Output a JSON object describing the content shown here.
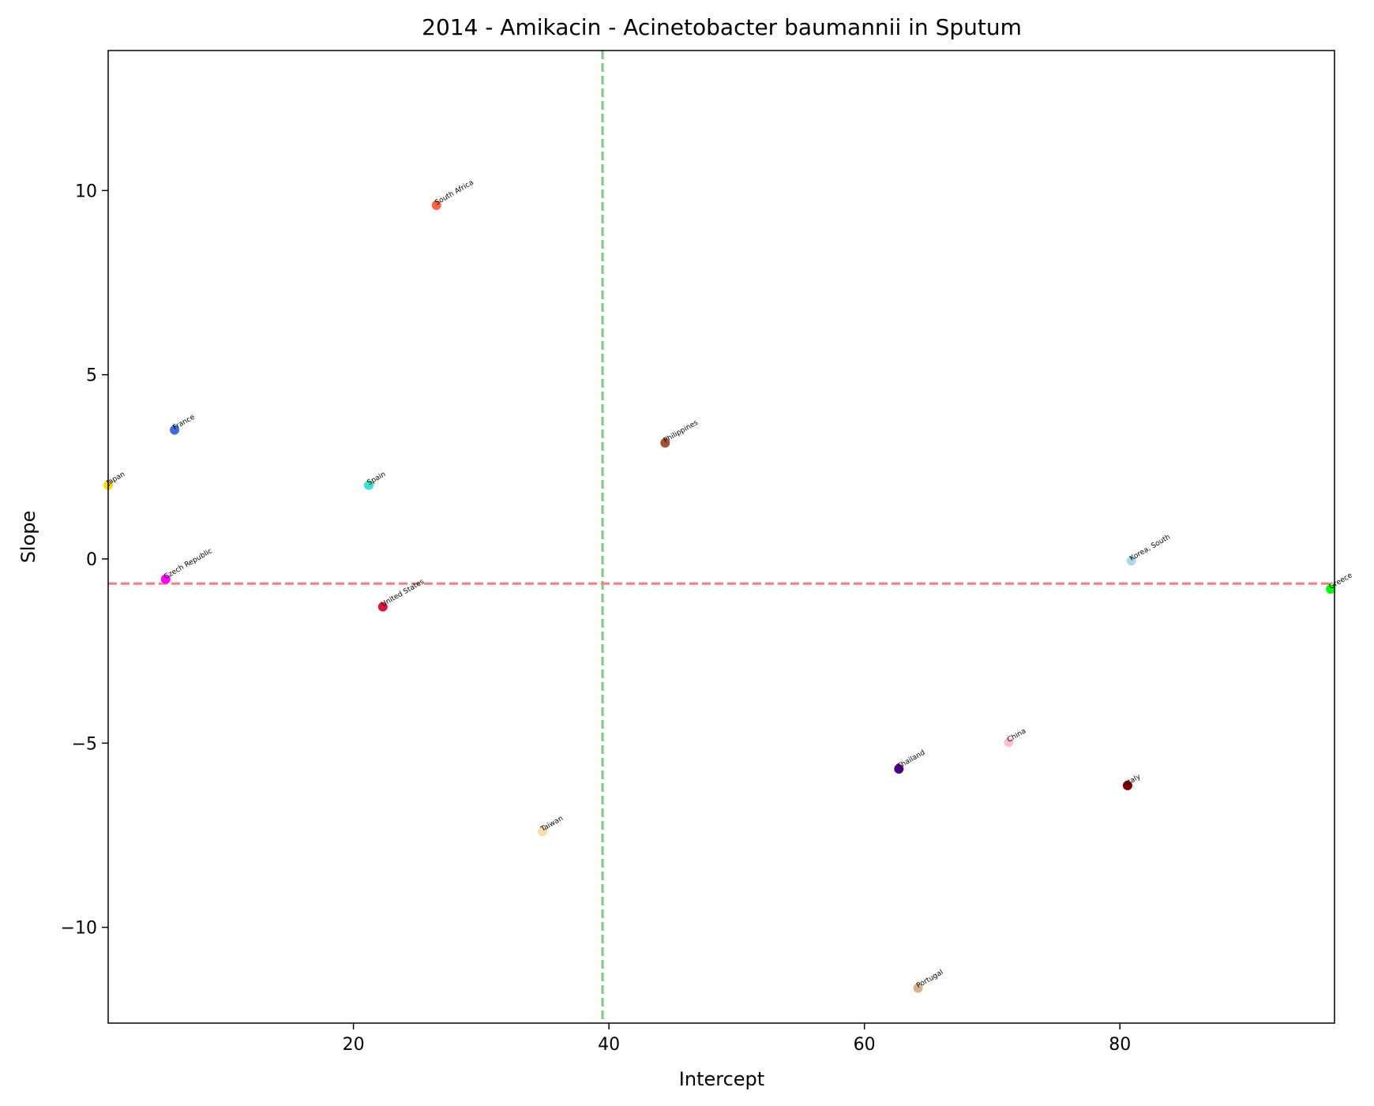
{
  "chart_data": {
    "type": "scatter",
    "title": "2014 - Amikacin - Acinetobacter baumannii in Sputum",
    "xlabel": "Intercept",
    "ylabel": "Slope",
    "xlim": [
      0.8,
      96.8
    ],
    "ylim": [
      -12.6,
      13.8
    ],
    "xticks": [
      20,
      40,
      60,
      80
    ],
    "yticks": [
      -10,
      -5,
      0,
      5,
      10
    ],
    "grid": false,
    "reference_lines": {
      "vertical_x": 39.5,
      "vertical_color": "#7fc87f",
      "horizontal_y": -0.67,
      "horizontal_color": "#f08080"
    },
    "points": [
      {
        "label": "South Africa",
        "x": 26.5,
        "y": 9.6,
        "color": "#ff6347"
      },
      {
        "label": "France",
        "x": 6.0,
        "y": 3.5,
        "color": "#4169e1"
      },
      {
        "label": "Japan",
        "x": 0.8,
        "y": 2.0,
        "color": "#ffd700"
      },
      {
        "label": "Spain",
        "x": 21.2,
        "y": 2.0,
        "color": "#40e0d0"
      },
      {
        "label": "Philippines",
        "x": 44.4,
        "y": 3.15,
        "color": "#a0522d"
      },
      {
        "label": "Czech Republic",
        "x": 5.3,
        "y": -0.55,
        "color": "#ff00ff"
      },
      {
        "label": "United States",
        "x": 22.3,
        "y": -1.3,
        "color": "#dc143c"
      },
      {
        "label": "Korea, South",
        "x": 80.9,
        "y": -0.05,
        "color": "#add8e6"
      },
      {
        "label": "Greece",
        "x": 96.5,
        "y": -0.82,
        "color": "#00ff00"
      },
      {
        "label": "China",
        "x": 71.3,
        "y": -4.98,
        "color": "#ffc0cb"
      },
      {
        "label": "Thailand",
        "x": 62.7,
        "y": -5.7,
        "color": "#4b0082"
      },
      {
        "label": "Italy",
        "x": 80.6,
        "y": -6.15,
        "color": "#800000"
      },
      {
        "label": "Taiwan",
        "x": 34.8,
        "y": -7.4,
        "color": "#f5deb3"
      },
      {
        "label": "Portugal",
        "x": 64.2,
        "y": -11.65,
        "color": "#d2b48c"
      }
    ]
  }
}
